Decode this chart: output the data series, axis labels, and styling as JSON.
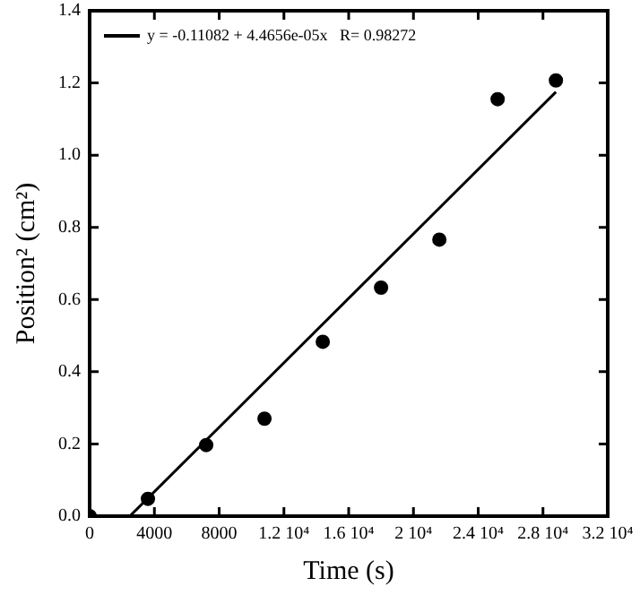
{
  "chart_data": {
    "type": "scatter",
    "xlabel": "Time (s)",
    "ylabel": "Position² (cm²)",
    "xlim": [
      0,
      32000
    ],
    "ylim": [
      0,
      1.4
    ],
    "xticks": [
      0,
      4000,
      8000,
      {
        "value": 12000,
        "label": "1.2 10⁴"
      },
      {
        "value": 16000,
        "label": "1.6 10⁴"
      },
      {
        "value": 20000,
        "label": "2 10⁴"
      },
      {
        "value": 24000,
        "label": "2.4 10⁴"
      },
      {
        "value": 28000,
        "label": "2.8 10⁴"
      },
      {
        "value": 32000,
        "label": "3.2 10⁴"
      }
    ],
    "yticks": [
      {
        "value": 0,
        "label": "0.0"
      },
      0.2,
      0.4,
      0.6,
      0.8,
      {
        "value": 1,
        "label": "1.0"
      },
      1.2,
      1.4
    ],
    "grid": false,
    "legend": "top left",
    "series": [
      {
        "marker": "circle",
        "color": "#000000",
        "x": [
          0,
          3600,
          7200,
          10800,
          14400,
          18000,
          21600,
          25200,
          28800
        ],
        "values": [
          0,
          0.048,
          0.197,
          0.27,
          0.483,
          0.633,
          0.766,
          1.155,
          1.207
        ]
      },
      {
        "type": "line",
        "marker": "none",
        "name": "y = -0.11082 + 4.4656e-05x   R= 0.98272",
        "color": "#000000",
        "x": [
          2482,
          28800
        ],
        "values": [
          0,
          1.175
        ]
      }
    ]
  }
}
